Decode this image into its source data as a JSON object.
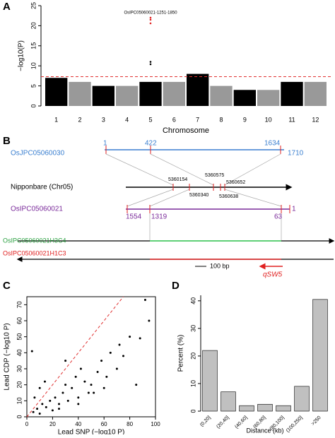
{
  "panel_labels": [
    "A",
    "B",
    "C",
    "D"
  ],
  "chart_data": [
    {
      "type": "manhattan",
      "ylabel": "−log10(P)",
      "xlabel": "Chromosome",
      "categories": [
        "1",
        "2",
        "3",
        "4",
        "5",
        "6",
        "7",
        "8",
        "9",
        "10",
        "11",
        "12"
      ],
      "values": [
        7,
        6,
        5,
        5,
        6,
        6,
        8,
        5,
        4,
        4,
        6,
        6
      ],
      "colors": [
        "#000000",
        "#999999"
      ],
      "ylim": [
        0,
        25
      ],
      "yticks": [
        0,
        5,
        10,
        15,
        20,
        25
      ],
      "threshold": 7.3,
      "threshold_color": "#e03030",
      "outliers": {
        "category": "5",
        "values": [
          22,
          21.5,
          20.6,
          11,
          10.4
        ]
      },
      "annotation": "OsIPC05060021-1251-1850"
    },
    {
      "type": "scatter",
      "xlabel": "Lead SNP (−log10 P)",
      "ylabel": "Lead CDP (−log10 P)",
      "x": [
        5,
        8,
        10,
        12,
        15,
        18,
        20,
        22,
        25,
        28,
        30,
        32,
        35,
        38,
        40,
        42,
        45,
        48,
        50,
        55,
        58,
        60,
        62,
        65,
        70,
        72,
        75,
        80,
        85,
        88,
        92,
        95,
        6,
        10,
        14,
        25,
        30,
        40,
        52,
        4
      ],
      "y": [
        3,
        5,
        2,
        8,
        6,
        10,
        4,
        12,
        8,
        15,
        20,
        10,
        18,
        25,
        12,
        30,
        22,
        15,
        20,
        28,
        35,
        18,
        25,
        40,
        30,
        45,
        38,
        50,
        20,
        49,
        73,
        60,
        12,
        18,
        22,
        5,
        35,
        8,
        15,
        41
      ],
      "color": "#000000",
      "diagonal_color": "#e03030",
      "xlim": [
        0,
        100
      ],
      "xticks": [
        0,
        20,
        40,
        60,
        80,
        100
      ],
      "ylim": [
        0,
        75
      ],
      "yticks": [
        0,
        10,
        20,
        30,
        40,
        50,
        60,
        70
      ]
    },
    {
      "type": "bar",
      "xlabel": "Distance (kb)",
      "ylabel": "Percent (%)",
      "categories": [
        "(0,20]",
        "(20,40]",
        "(40,60]",
        "(60,80]",
        "(80,100]",
        "(100,250]",
        ">250"
      ],
      "values": [
        22,
        7,
        2,
        2.5,
        2,
        9,
        40.5
      ],
      "color": "#c0c0c0",
      "ylim": [
        0,
        42
      ],
      "yticks": [
        0,
        10,
        20,
        30,
        40
      ]
    }
  ],
  "diagram": {
    "gene1": {
      "name": "OsJPC05060030",
      "ticks": [
        "1",
        "422",
        "1634",
        "1710"
      ]
    },
    "reference": {
      "name": "Nipponbare (Chr05)",
      "coords": [
        "5360154",
        "5360575",
        "5360652",
        "5360340",
        "5360638"
      ]
    },
    "gene2": {
      "name": "OsIPC05060021",
      "ticks": [
        "1554",
        "1319",
        "63",
        "1"
      ]
    },
    "hap1": "OsIPC05060021H3C4",
    "hap2": "OsIPC05060021H1C3",
    "scale": "100 bp",
    "qtl": "qSW5"
  }
}
